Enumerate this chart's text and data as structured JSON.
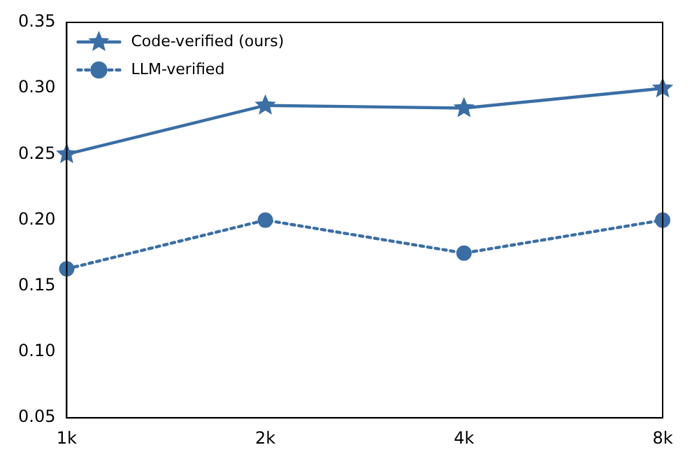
{
  "chart_data": {
    "type": "line",
    "categories": [
      "1k",
      "2k",
      "4k",
      "8k"
    ],
    "series": [
      {
        "name": "Code-verified (ours)",
        "color": "#3a6ea5",
        "values": [
          0.25,
          0.287,
          0.285,
          0.3
        ],
        "marker": "star",
        "line_style": "solid"
      },
      {
        "name": "LLM-verified",
        "color": "#3a6ea5",
        "values": [
          0.163,
          0.2,
          0.175,
          0.2
        ],
        "marker": "circle",
        "line_style": "dotted"
      }
    ],
    "ylim": [
      0.05,
      0.35
    ],
    "yticks": [
      {
        "value": 0.05,
        "label": "0.05"
      },
      {
        "value": 0.1,
        "label": "0.10"
      },
      {
        "value": 0.15,
        "label": "0.15"
      },
      {
        "value": 0.2,
        "label": "0.20"
      },
      {
        "value": 0.25,
        "label": "0.25"
      },
      {
        "value": 0.3,
        "label": "0.30"
      },
      {
        "value": 0.35,
        "label": "0.35"
      }
    ],
    "grid": false,
    "legend": "top left"
  }
}
